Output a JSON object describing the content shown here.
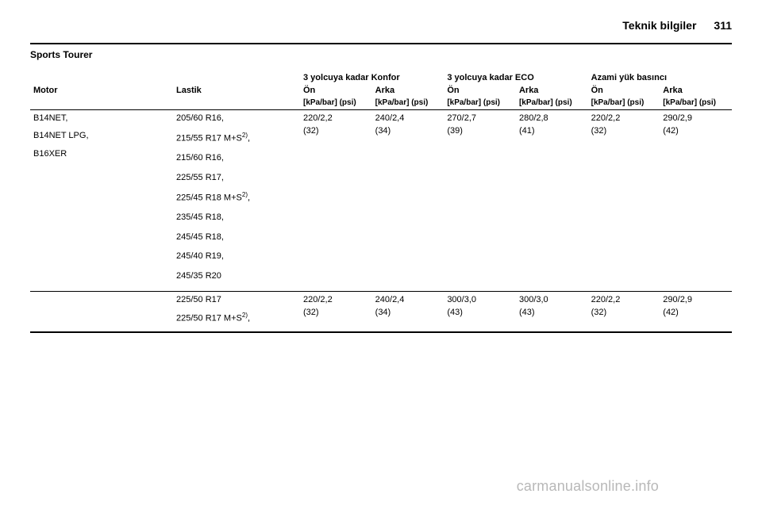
{
  "header": {
    "section": "Teknik bilgiler",
    "page": "311"
  },
  "variant": "Sports Tourer",
  "groups": {
    "g1": "3 yolcuya kadar Konfor",
    "g2": "3 yolcuya kadar ECO",
    "g3": "Azami yük basıncı"
  },
  "colhead": {
    "motor": "Motor",
    "tyre": "Lastik",
    "front": "Ön",
    "rear": "Arka"
  },
  "unit": {
    "kpa": "[kPa/bar] (psi)"
  },
  "motors": {
    "m1": "B14NET,",
    "m2": "B14NET LPG,",
    "m3": "B16XER"
  },
  "tyres1": {
    "t0": "205/60 R16,",
    "t1": "215/55 R17 M+S",
    "t1s": "2)",
    "t1c": ",",
    "t2": "215/60 R16,",
    "t3": "225/55 R17,",
    "t4": "225/45 R18 M+S",
    "t4s": "2)",
    "t4c": ",",
    "t5": "235/45 R18,",
    "t6": "245/45 R18,",
    "t7": "245/40 R19,",
    "t8": "245/35 R20"
  },
  "tyres2": {
    "t0": "225/50 R17",
    "t1": "225/50 R17 M+S",
    "t1s": "2)",
    "t1c": ","
  },
  "row1": {
    "c1a": "220/2,2",
    "c1b": "(32)",
    "c2a": "240/2,4",
    "c2b": "(34)",
    "c3a": "270/2,7",
    "c3b": "(39)",
    "c4a": "280/2,8",
    "c4b": "(41)",
    "c5a": "220/2,2",
    "c5b": "(32)",
    "c6a": "290/2,9",
    "c6b": "(42)"
  },
  "row2": {
    "c1a": "220/2,2",
    "c1b": "(32)",
    "c2a": "240/2,4",
    "c2b": "(34)",
    "c3a": "300/3,0",
    "c3b": "(43)",
    "c4a": "300/3,0",
    "c4b": "(43)",
    "c5a": "220/2,2",
    "c5b": "(32)",
    "c6a": "290/2,9",
    "c6b": "(42)"
  },
  "watermark": "carmanualsonline.info"
}
